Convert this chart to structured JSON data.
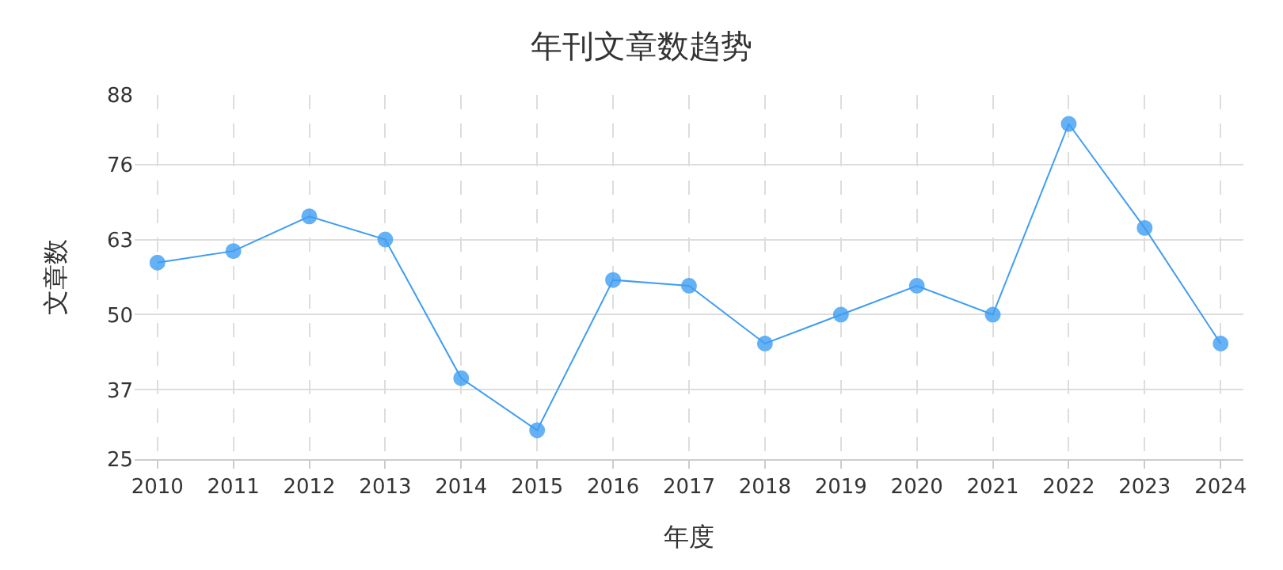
{
  "chart_data": {
    "type": "line",
    "title": "年刊文章数趋势",
    "xlabel": "年度",
    "ylabel": "文章数",
    "categories": [
      "2010",
      "2011",
      "2012",
      "2013",
      "2014",
      "2015",
      "2016",
      "2017",
      "2018",
      "2019",
      "2020",
      "2021",
      "2022",
      "2023",
      "2024"
    ],
    "series": [
      {
        "color": "#3f9df2",
        "values": [
          59,
          61,
          67,
          63,
          39,
          30,
          56,
          55,
          45,
          50,
          55,
          50,
          83,
          65,
          45
        ]
      }
    ],
    "ylim": [
      25,
      88
    ],
    "yticks": [
      25,
      37,
      50,
      63,
      76,
      88
    ],
    "grid": true,
    "marker": "circle",
    "line_style": "solid",
    "legend": false
  }
}
